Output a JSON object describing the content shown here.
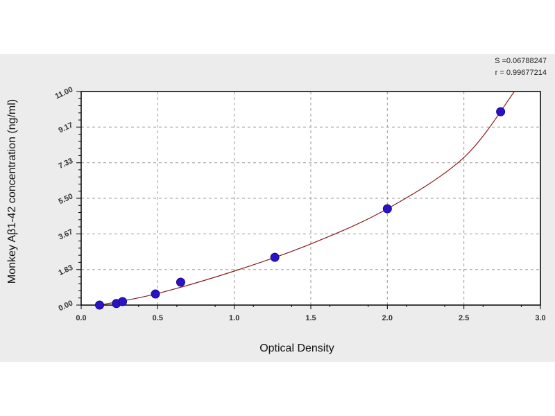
{
  "chart_data": {
    "type": "scatter",
    "title": "",
    "xlabel": "Optical Density",
    "ylabel": "Monkey Aβ1-42 concentration (ng/ml)",
    "xlim": [
      0.0,
      3.0
    ],
    "ylim": [
      0.0,
      11.0
    ],
    "x_ticks": [
      "0.0",
      "0.5",
      "1.0",
      "1.5",
      "2.0",
      "2.5",
      "3.0"
    ],
    "y_ticks": [
      "0.00",
      "1.83",
      "3.67",
      "5.50",
      "7.33",
      "9.17",
      "11.00"
    ],
    "grid": true,
    "points": [
      {
        "x": 0.12,
        "y": 0.0
      },
      {
        "x": 0.23,
        "y": 0.08
      },
      {
        "x": 0.27,
        "y": 0.18
      },
      {
        "x": 0.485,
        "y": 0.57
      },
      {
        "x": 0.65,
        "y": 1.18
      },
      {
        "x": 1.265,
        "y": 2.46
      },
      {
        "x": 2.0,
        "y": 4.96
      },
      {
        "x": 2.74,
        "y": 9.96
      }
    ],
    "fit_curve": [
      {
        "x": 0.12,
        "y": 0.0
      },
      {
        "x": 0.485,
        "y": 0.57
      },
      {
        "x": 1.0,
        "y": 1.75
      },
      {
        "x": 1.5,
        "y": 3.15
      },
      {
        "x": 2.0,
        "y": 4.96
      },
      {
        "x": 2.5,
        "y": 7.6
      },
      {
        "x": 2.83,
        "y": 11.0
      }
    ],
    "colors": {
      "point": "#2a12c8",
      "curve": "#8b1a1a",
      "grid": "#999999"
    },
    "annotations": {
      "s": "S =0.06788247",
      "r": "r = 0.99677214"
    }
  }
}
